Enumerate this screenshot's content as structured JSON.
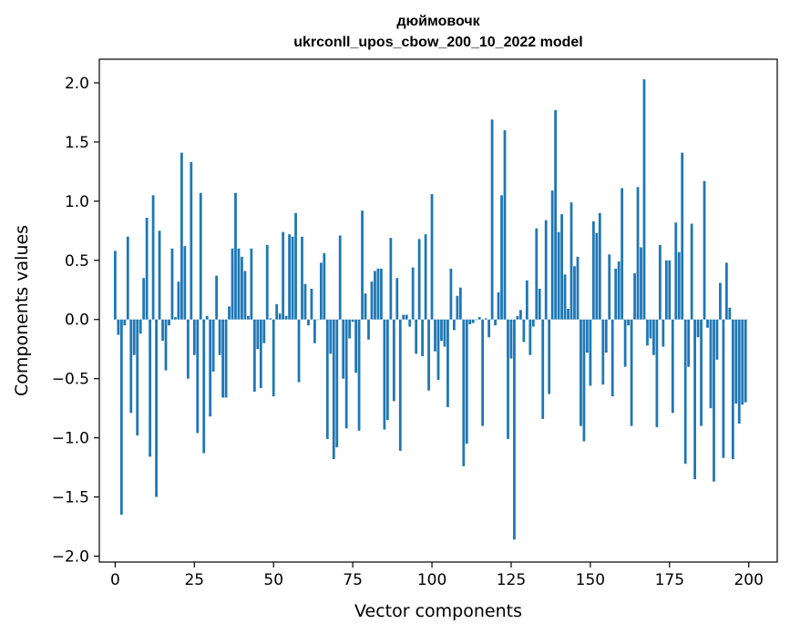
{
  "chart_data": {
    "type": "bar",
    "title": "дюймовочк",
    "subtitle": "ukrconll_upos_cbow_200_10_2022 model",
    "xlabel": "Vector components",
    "ylabel": "Components values",
    "xlim": [
      -5,
      209
    ],
    "ylim": [
      -2.05,
      2.2
    ],
    "xticks": [
      0,
      25,
      50,
      75,
      100,
      125,
      150,
      175,
      200
    ],
    "yticks": [
      -2.0,
      -1.5,
      -1.0,
      -0.5,
      0.0,
      0.5,
      1.0,
      1.5,
      2.0
    ],
    "ytick_labels": [
      "−2.0",
      "−1.5",
      "−1.0",
      "−0.5",
      "0.0",
      "0.5",
      "1.0",
      "1.5",
      "2.0"
    ],
    "bar_color": "#1f77b4",
    "grid": false,
    "x": [
      0,
      1,
      2,
      3,
      4,
      5,
      6,
      7,
      8,
      9,
      10,
      11,
      12,
      13,
      14,
      15,
      16,
      17,
      18,
      19,
      20,
      21,
      22,
      23,
      24,
      25,
      26,
      27,
      28,
      29,
      30,
      31,
      32,
      33,
      34,
      35,
      36,
      37,
      38,
      39,
      40,
      41,
      42,
      43,
      44,
      45,
      46,
      47,
      48,
      49,
      50,
      51,
      52,
      53,
      54,
      55,
      56,
      57,
      58,
      59,
      60,
      61,
      62,
      63,
      64,
      65,
      66,
      67,
      68,
      69,
      70,
      71,
      72,
      73,
      74,
      75,
      76,
      77,
      78,
      79,
      80,
      81,
      82,
      83,
      84,
      85,
      86,
      87,
      88,
      89,
      90,
      91,
      92,
      93,
      94,
      95,
      96,
      97,
      98,
      99,
      100,
      101,
      102,
      103,
      104,
      105,
      106,
      107,
      108,
      109,
      110,
      111,
      112,
      113,
      114,
      115,
      116,
      117,
      118,
      119,
      120,
      121,
      122,
      123,
      124,
      125,
      126,
      127,
      128,
      129,
      130,
      131,
      132,
      133,
      134,
      135,
      136,
      137,
      138,
      139,
      140,
      141,
      142,
      143,
      144,
      145,
      146,
      147,
      148,
      149,
      150,
      151,
      152,
      153,
      154,
      155,
      156,
      157,
      158,
      159,
      160,
      161,
      162,
      163,
      164,
      165,
      166,
      167,
      168,
      169,
      170,
      171,
      172,
      173,
      174,
      175,
      176,
      177,
      178,
      179,
      180,
      181,
      182,
      183,
      184,
      185,
      186,
      187,
      188,
      189,
      190,
      191,
      192,
      193,
      194,
      195,
      196,
      197,
      198,
      199
    ],
    "values": [
      0.58,
      -0.13,
      -1.65,
      -0.05,
      0.7,
      -0.79,
      -0.3,
      -0.98,
      -0.12,
      0.35,
      0.86,
      -1.16,
      1.05,
      -1.5,
      0.75,
      -0.18,
      -0.43,
      -0.05,
      0.6,
      0.02,
      0.32,
      1.41,
      0.62,
      -0.5,
      1.33,
      -0.3,
      -0.96,
      1.07,
      -1.13,
      0.03,
      -0.82,
      -0.44,
      0.37,
      -0.3,
      -0.66,
      -0.66,
      0.11,
      0.6,
      1.07,
      0.6,
      0.53,
      0.41,
      0.03,
      0.6,
      -0.61,
      -0.25,
      -0.58,
      -0.2,
      0.63,
      0.01,
      -0.65,
      0.13,
      0.05,
      0.74,
      0.03,
      0.72,
      0.7,
      0.9,
      -0.53,
      0.7,
      0.3,
      -0.05,
      0.26,
      -0.2,
      0.0,
      0.48,
      0.56,
      -1.01,
      -0.29,
      -1.18,
      -1.08,
      0.71,
      -0.5,
      -0.92,
      -0.16,
      -0.02,
      -0.45,
      -0.94,
      0.92,
      0.22,
      -0.17,
      0.32,
      0.41,
      0.43,
      0.43,
      -0.93,
      -0.85,
      0.69,
      -0.69,
      0.35,
      -1.11,
      0.04,
      0.04,
      -0.06,
      0.44,
      -0.29,
      0.68,
      -0.31,
      0.72,
      -0.6,
      1.06,
      -0.27,
      -0.51,
      -0.18,
      -0.23,
      -0.74,
      0.43,
      -0.09,
      0.2,
      0.27,
      -1.24,
      -1.05,
      -0.04,
      -0.03,
      0.0,
      0.02,
      -0.9,
      0.01,
      -0.15,
      1.69,
      -0.05,
      0.23,
      1.05,
      1.6,
      -1.01,
      -0.33,
      -1.86,
      0.03,
      0.08,
      -0.19,
      0.33,
      -0.3,
      -0.06,
      0.77,
      0.26,
      -0.84,
      0.84,
      -0.63,
      1.09,
      1.77,
      0.74,
      0.89,
      0.38,
      0.09,
      0.99,
      0.45,
      0.53,
      -0.9,
      -1.03,
      -0.28,
      -0.56,
      0.83,
      0.73,
      0.9,
      -0.55,
      -0.28,
      0.55,
      -0.65,
      0.43,
      0.49,
      1.11,
      -0.4,
      -0.05,
      -0.9,
      0.39,
      1.12,
      0.61,
      2.03,
      -0.22,
      -0.16,
      -0.3,
      -0.91,
      0.63,
      -0.23,
      0.5,
      0.5,
      -0.79,
      0.82,
      0.57,
      1.41,
      -1.22,
      -0.4,
      0.81,
      -1.35,
      -0.15,
      -0.9,
      1.17,
      -0.07,
      -0.75,
      -1.37,
      -0.34,
      0.31,
      -1.17,
      0.48,
      0.1,
      -1.18,
      -0.71,
      -0.88,
      -0.72,
      -0.7
    ]
  }
}
